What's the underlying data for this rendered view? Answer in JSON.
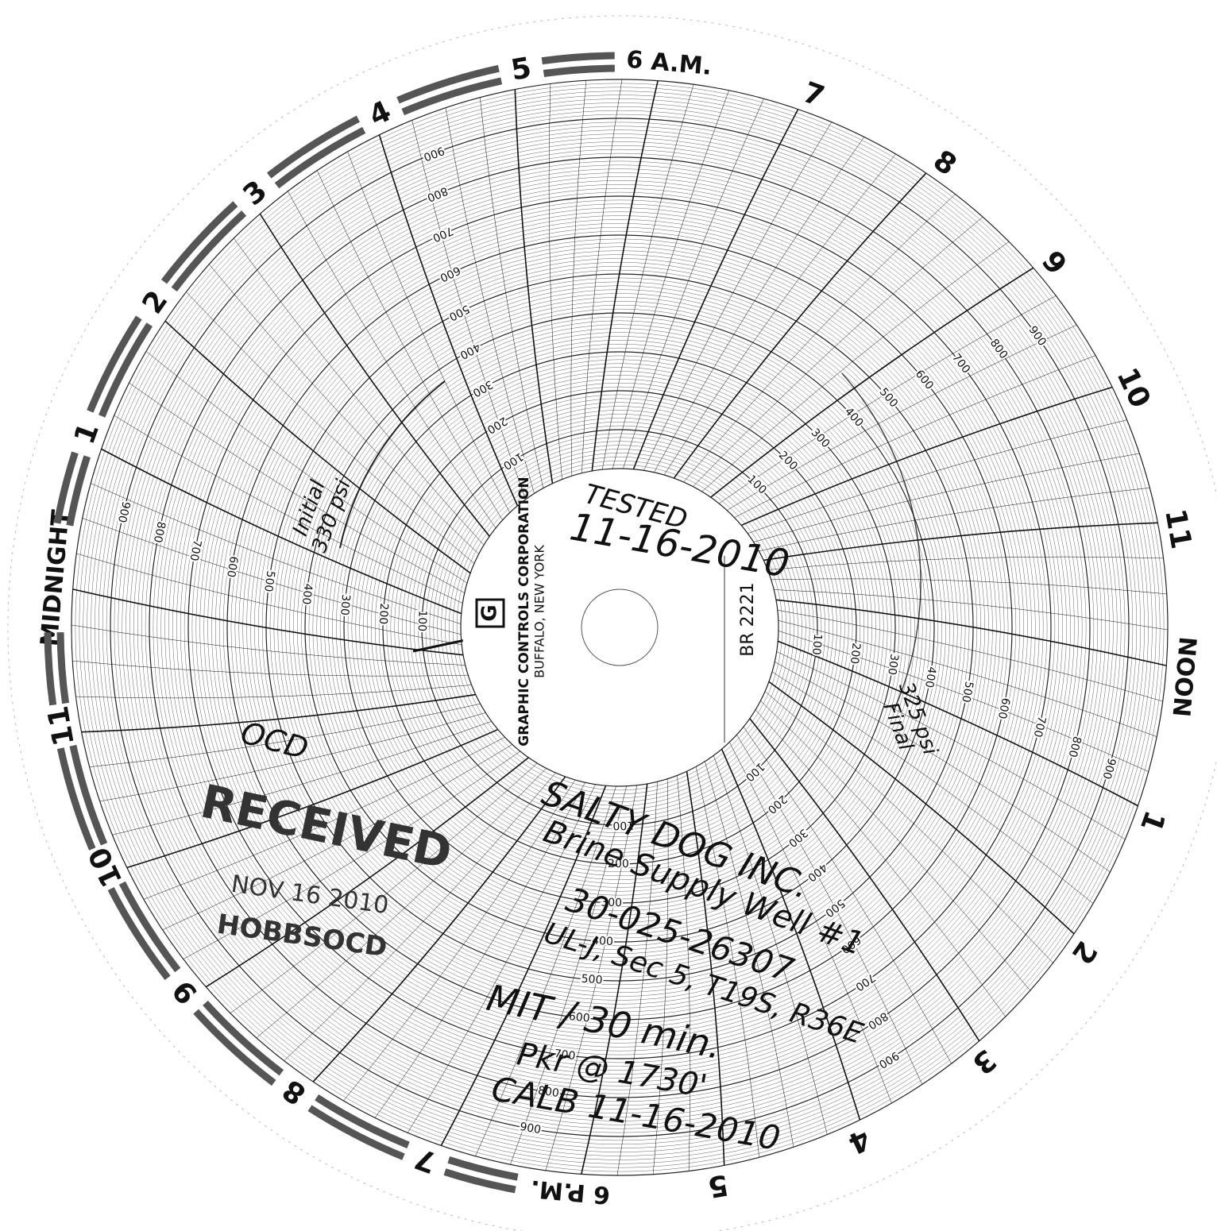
{
  "hours": [
    "MIDNIGHT",
    "1",
    "2",
    "3",
    "4",
    "5",
    "6 A.M.",
    "7",
    "8",
    "9",
    "10",
    "11",
    "NOON",
    "1",
    "2",
    "3",
    "4",
    "5",
    "6 P.M.",
    "7",
    "8",
    "9",
    "10",
    "11"
  ],
  "scale_labels": [
    "100",
    "200",
    "300",
    "400",
    "500",
    "600",
    "700",
    "800",
    "900"
  ],
  "center": {
    "logo": "G",
    "company": "GRAPHIC CONTROLS CORPORATION",
    "location": "BUFFALO, NEW YORK",
    "model": "BR 2221"
  },
  "annotations": [
    "TESTED",
    "11-16-2010",
    "Initial",
    "330 psi",
    "Final",
    "325 psi",
    "OCD",
    "SALTY DOG INC.",
    "Brine Supply Well #1",
    "30-025-26307",
    "UL-J, Sec 5, T19S, R36E",
    "MIT / 30 min.",
    "Pkr @ 1730'",
    "CALB 11-16-2010"
  ],
  "stamp": {
    "title": "RECEIVED",
    "date": "NOV 16 2010",
    "office": "HOBBSOCD"
  }
}
